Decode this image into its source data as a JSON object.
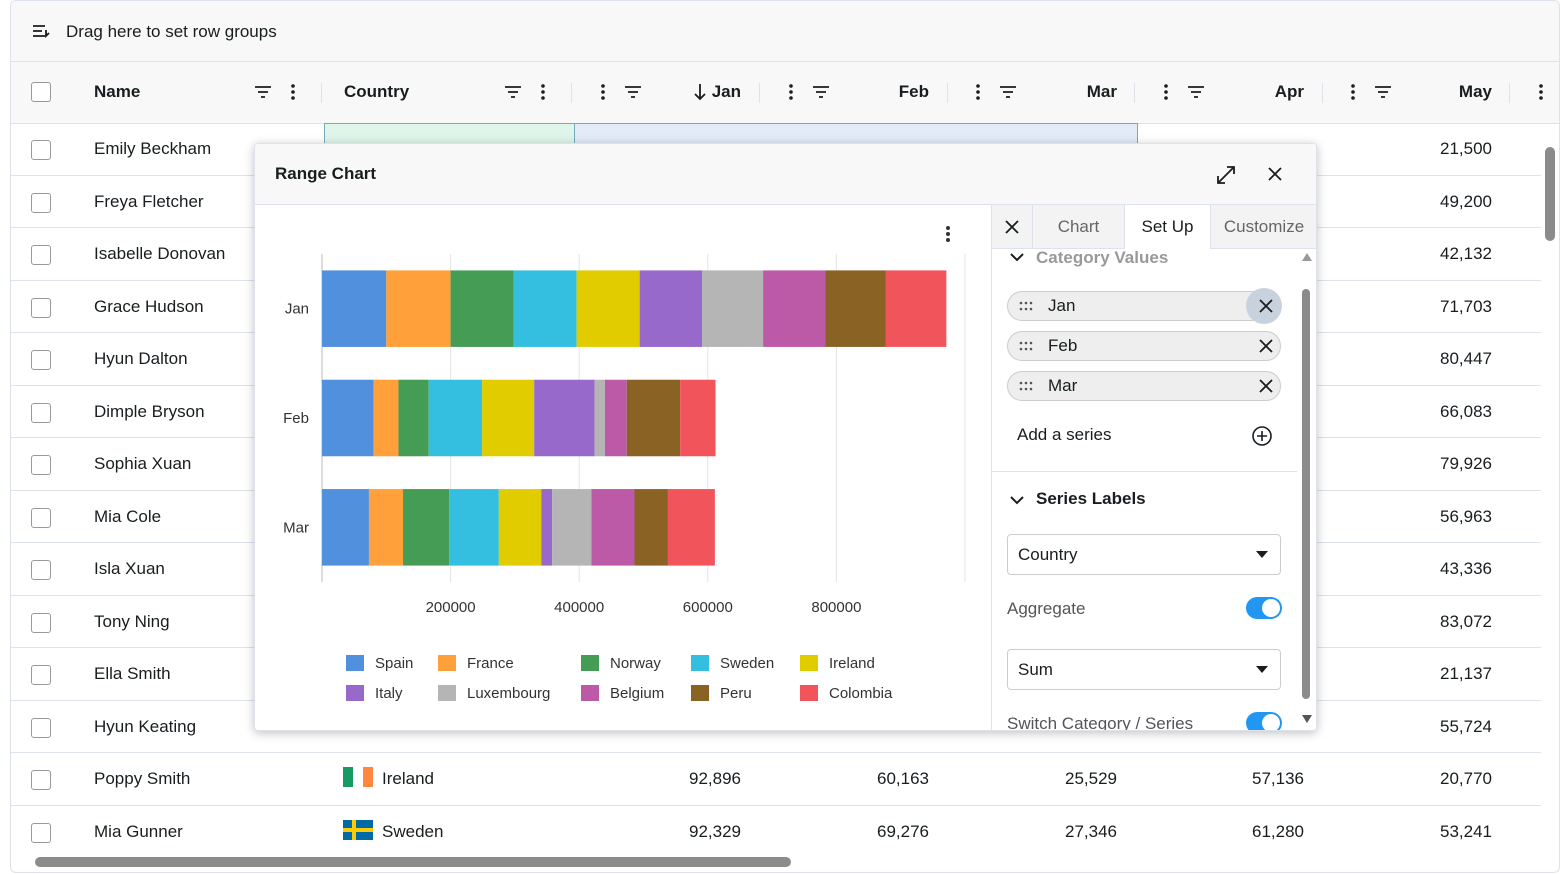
{
  "toolbar": {
    "label": "Drag here to set row groups"
  },
  "grid": {
    "columns": [
      "Name",
      "Country",
      "Jan",
      "Feb",
      "Mar",
      "Apr",
      "May"
    ],
    "sorted_column": 2,
    "rows": [
      {
        "name": "Emily Beckham",
        "country": null,
        "jan": null,
        "feb": null,
        "mar": null,
        "apr": null,
        "may": "21,500"
      },
      {
        "name": "Freya Fletcher",
        "country": null,
        "jan": null,
        "feb": null,
        "mar": null,
        "apr": null,
        "may": "49,200"
      },
      {
        "name": "Isabelle Donovan",
        "country": null,
        "jan": null,
        "feb": null,
        "mar": null,
        "apr": null,
        "may": "42,132"
      },
      {
        "name": "Grace Hudson",
        "country": null,
        "jan": null,
        "feb": null,
        "mar": null,
        "apr": null,
        "may": "71,703"
      },
      {
        "name": "Hyun Dalton",
        "country": null,
        "jan": null,
        "feb": null,
        "mar": null,
        "apr": null,
        "may": "80,447"
      },
      {
        "name": "Dimple Bryson",
        "country": null,
        "jan": null,
        "feb": null,
        "mar": null,
        "apr": null,
        "may": "66,083"
      },
      {
        "name": "Sophia Xuan",
        "country": null,
        "jan": null,
        "feb": null,
        "mar": null,
        "apr": null,
        "may": "79,926"
      },
      {
        "name": "Mia Cole",
        "country": null,
        "jan": null,
        "feb": null,
        "mar": null,
        "apr": null,
        "may": "56,963"
      },
      {
        "name": "Isla Xuan",
        "country": null,
        "jan": null,
        "feb": null,
        "mar": null,
        "apr": null,
        "may": "43,336"
      },
      {
        "name": "Tony Ning",
        "country": null,
        "jan": null,
        "feb": null,
        "mar": null,
        "apr": null,
        "may": "83,072"
      },
      {
        "name": "Ella Smith",
        "country": null,
        "jan": null,
        "feb": null,
        "mar": null,
        "apr": null,
        "may": "21,137"
      },
      {
        "name": "Hyun Keating",
        "country": null,
        "jan": null,
        "feb": null,
        "mar": null,
        "apr": null,
        "may": "55,724"
      },
      {
        "name": "Poppy Smith",
        "country": "Ireland",
        "jan": "92,896",
        "feb": "60,163",
        "mar": "25,529",
        "apr": "57,136",
        "may": "20,770"
      },
      {
        "name": "Mia Gunner",
        "country": "Sweden",
        "jan": "92,329",
        "feb": "69,276",
        "mar": "27,346",
        "apr": "61,280",
        "may": "53,241"
      }
    ]
  },
  "dialog": {
    "title": "Range Chart"
  },
  "chart_data": {
    "type": "bar",
    "orientation": "horizontal",
    "stacked": true,
    "categories": [
      "Jan",
      "Feb",
      "Mar"
    ],
    "series": [
      {
        "name": "Spain",
        "color": "#5090dc",
        "values": [
          100000,
          80000,
          73000
        ]
      },
      {
        "name": "France",
        "color": "#ffa03a",
        "values": [
          100000,
          39000,
          53000
        ]
      },
      {
        "name": "Norway",
        "color": "#459d55",
        "values": [
          98000,
          47000,
          72000
        ]
      },
      {
        "name": "Sweden",
        "color": "#34bfe1",
        "values": [
          98000,
          83000,
          77000
        ]
      },
      {
        "name": "Ireland",
        "color": "#e1cc00",
        "values": [
          98000,
          81000,
          66000
        ]
      },
      {
        "name": "Italy",
        "color": "#9669cb",
        "values": [
          97000,
          94000,
          17000
        ]
      },
      {
        "name": "Luxembourg",
        "color": "#b5b5b5",
        "values": [
          95000,
          16000,
          61000
        ]
      },
      {
        "name": "Belgium",
        "color": "#bd5aa7",
        "values": [
          97000,
          34000,
          67000
        ]
      },
      {
        "name": "Peru",
        "color": "#8a6224",
        "values": [
          94000,
          83000,
          52000
        ]
      },
      {
        "name": "Colombia",
        "color": "#f1545b",
        "values": [
          94000,
          55000,
          73000
        ]
      }
    ],
    "xlim": [
      0,
      1000000
    ],
    "xticks": [
      200000,
      400000,
      600000,
      800000
    ],
    "grid": true,
    "legend": "bottom"
  },
  "panel": {
    "tabs": [
      "Chart",
      "Set Up",
      "Customize"
    ],
    "active_tab": 1,
    "category_section": "Category Values",
    "category_values": [
      "Jan",
      "Feb",
      "Mar"
    ],
    "add_series": "Add a series",
    "series_section": "Series Labels",
    "series_labels_select": "Country",
    "aggregate_label": "Aggregate",
    "aggregate": true,
    "aggregate_func": "Sum",
    "switch_label": "Switch Category / Series",
    "switch": true
  }
}
